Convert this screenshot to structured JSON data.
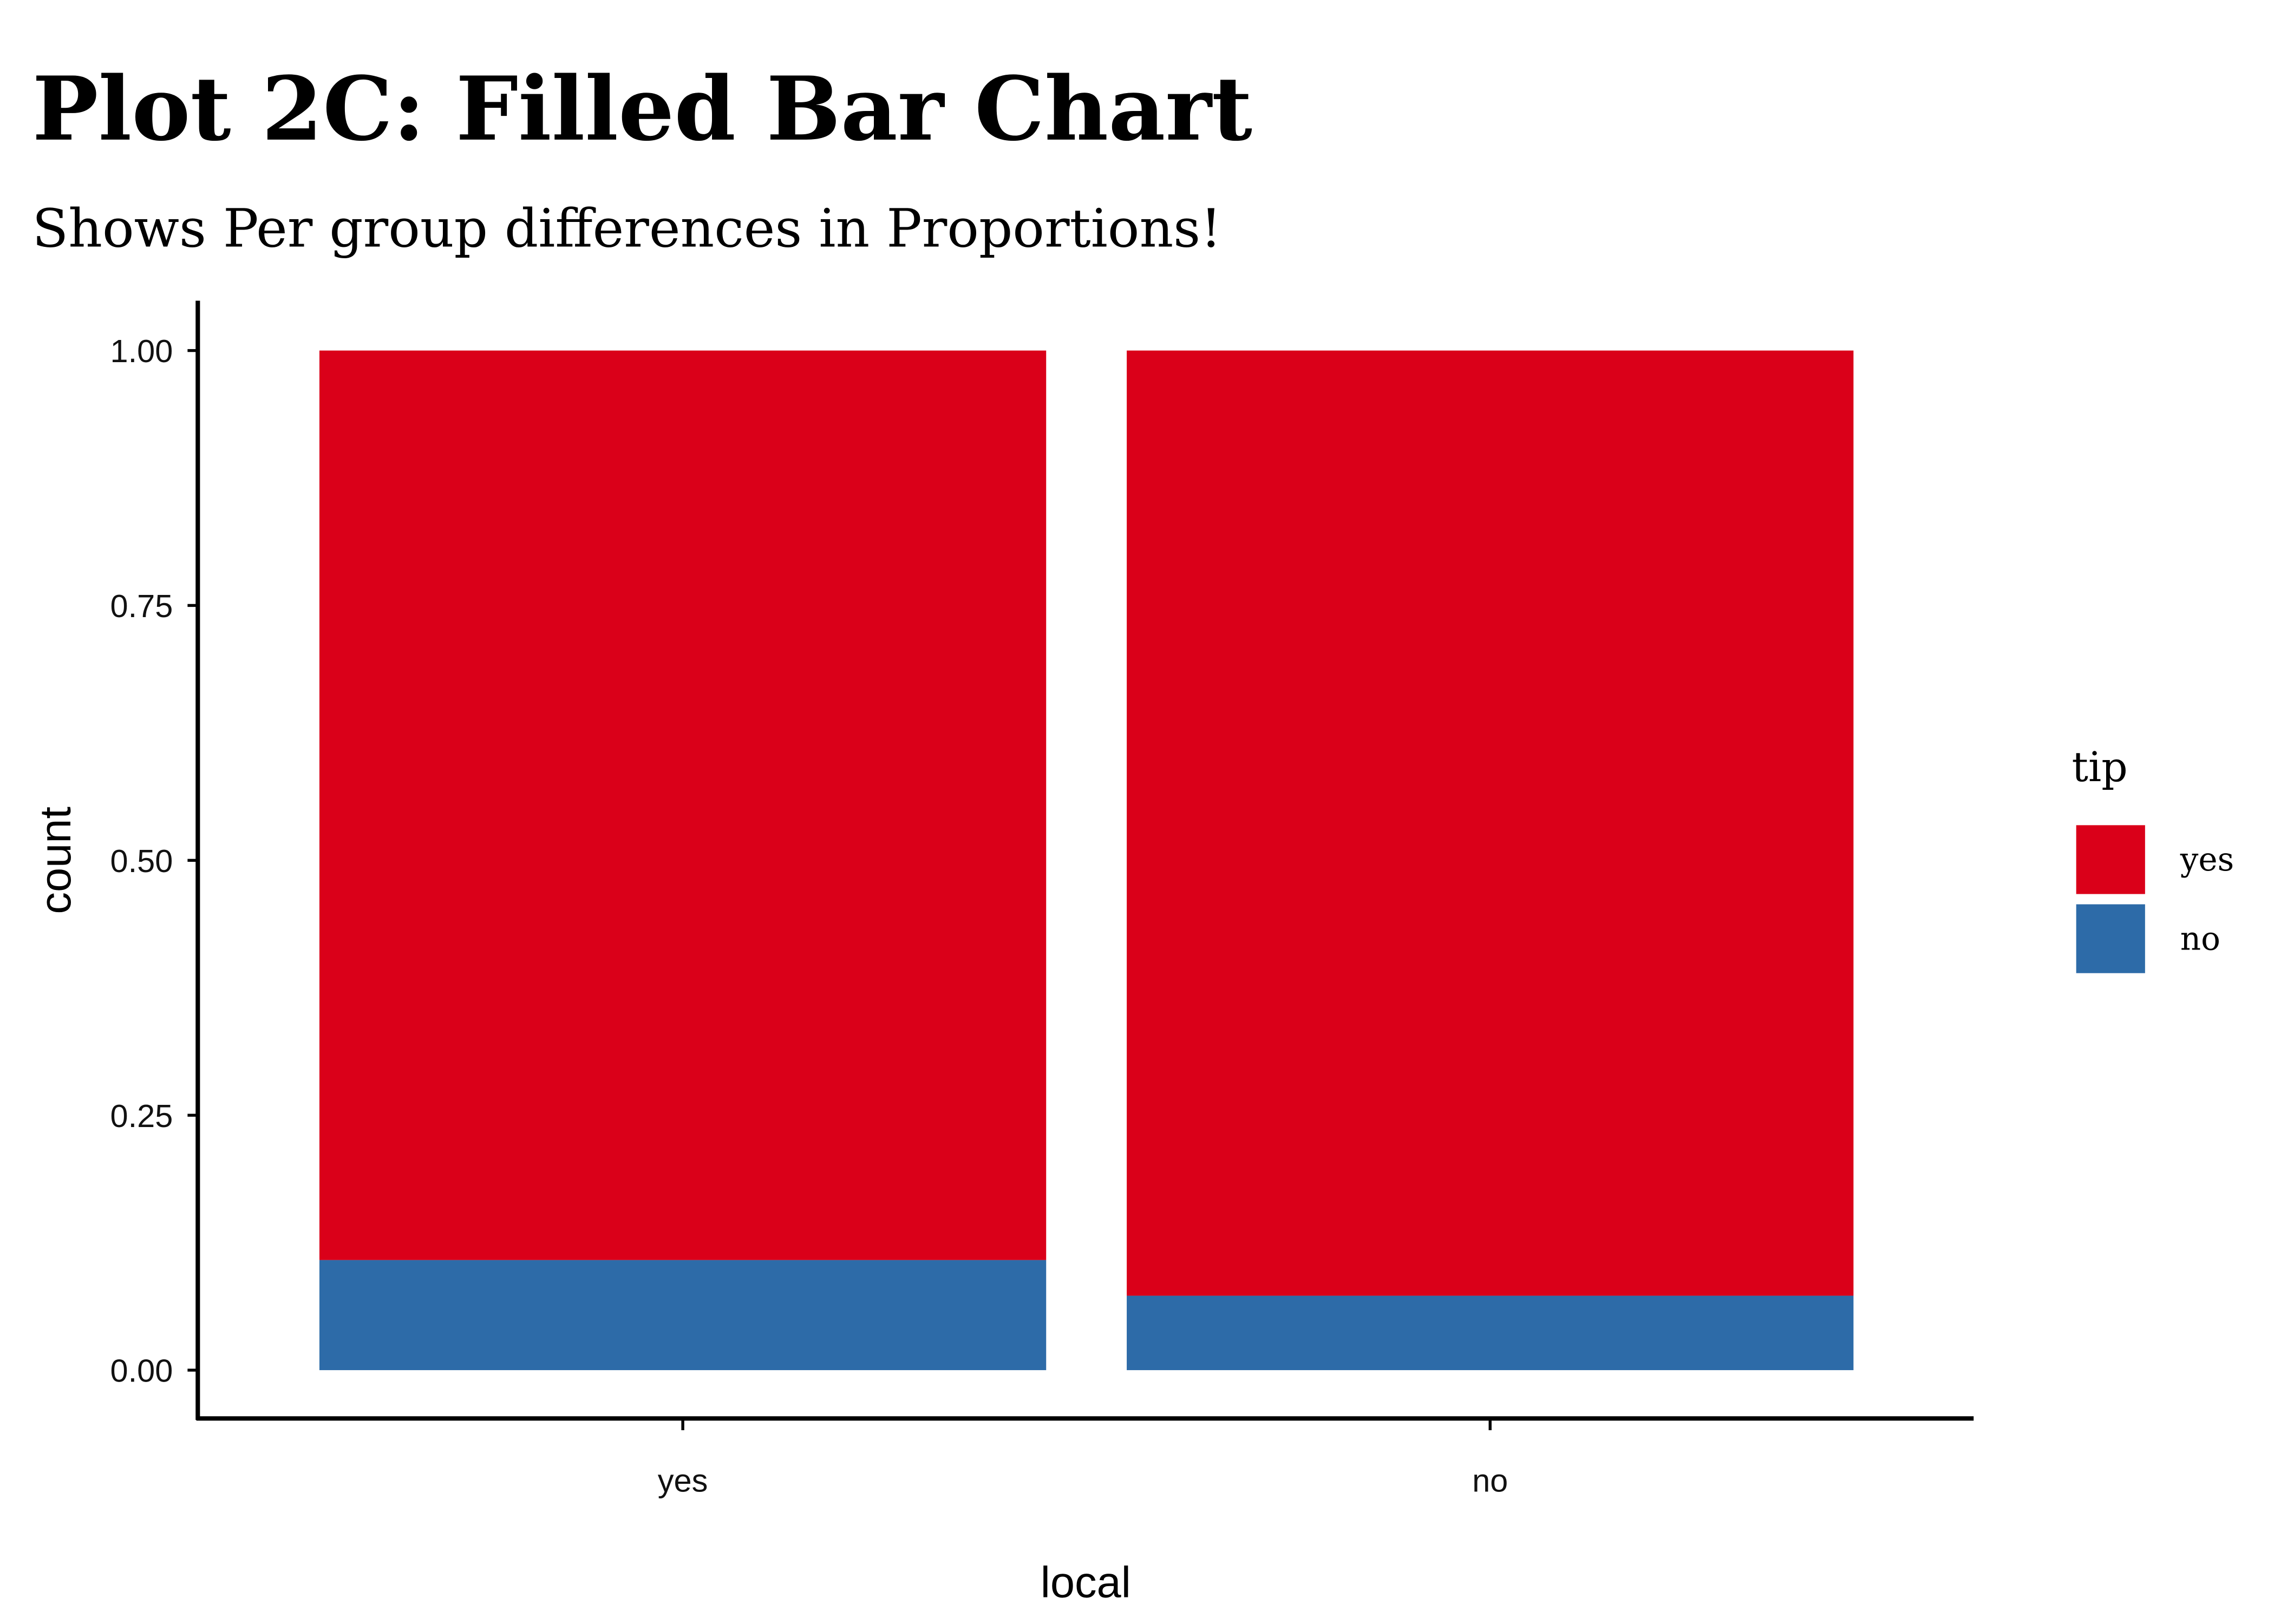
{
  "chart_data": {
    "type": "bar",
    "stacked": "fill",
    "title": "Plot 2C: Filled Bar Chart",
    "subtitle": "Shows Per group differences in Proportions!",
    "xlabel": "local",
    "ylabel": "count",
    "categories": [
      "yes",
      "no"
    ],
    "ylim": [
      0,
      1
    ],
    "yticks": [
      "0.00",
      "0.25",
      "0.50",
      "0.75",
      "1.00"
    ],
    "grid": false,
    "legend": {
      "title": "tip",
      "position": "right"
    },
    "series": [
      {
        "name": "yes",
        "color": "#DA0019",
        "values": [
          0.892,
          0.927
        ]
      },
      {
        "name": "no",
        "color": "#2D6BA8",
        "values": [
          0.108,
          0.073
        ]
      }
    ]
  }
}
